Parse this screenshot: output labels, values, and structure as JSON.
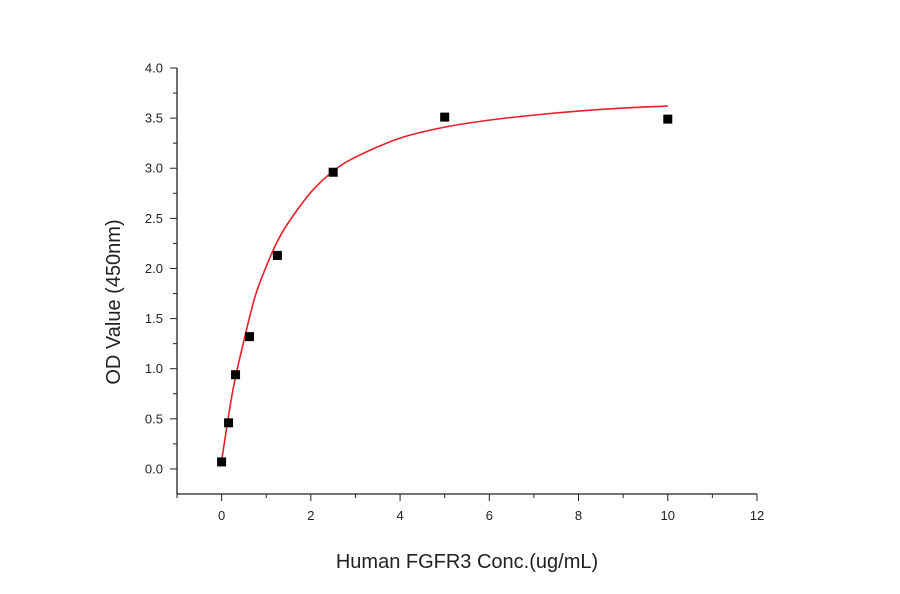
{
  "chart_data": {
    "type": "scatter",
    "xlabel": "Human FGFR3 Conc.(ug/mL)",
    "ylabel": "OD Value (450nm)",
    "xlim": [
      -1,
      12
    ],
    "ylim": [
      -0.25,
      4.0
    ],
    "xticks": [
      "0",
      "2",
      "4",
      "6",
      "8",
      "10",
      "12"
    ],
    "yticks": [
      "0.0",
      "0.5",
      "1.0",
      "1.5",
      "2.0",
      "2.5",
      "3.0",
      "3.5",
      "4.0"
    ],
    "grid": false,
    "points": {
      "x": [
        0,
        0.156,
        0.3125,
        0.625,
        1.25,
        2.5,
        5,
        10
      ],
      "y": [
        0.07,
        0.46,
        0.94,
        1.32,
        2.13,
        2.96,
        3.51,
        3.49
      ]
    },
    "fit_curve": {
      "x": [
        0,
        0.25,
        0.5,
        0.75,
        1,
        1.25,
        1.5,
        2,
        2.5,
        3,
        4,
        5,
        6,
        7,
        8,
        9,
        10
      ],
      "y": [
        0.08,
        0.78,
        1.28,
        1.72,
        2.02,
        2.27,
        2.46,
        2.76,
        2.97,
        3.11,
        3.3,
        3.41,
        3.48,
        3.53,
        3.57,
        3.6,
        3.62
      ]
    },
    "marker_color": "#000000",
    "curve_color": "#e8202a"
  }
}
